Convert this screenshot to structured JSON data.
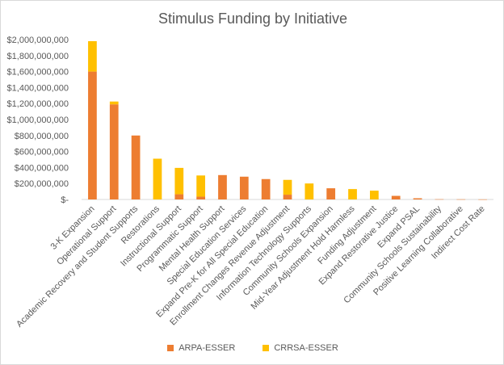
{
  "chart_data": {
    "type": "bar",
    "stacked": true,
    "title": "Stimulus Funding by Initiative",
    "xlabel": "",
    "ylabel": "",
    "ylim": [
      0,
      2000000000
    ],
    "yticks": [
      "$-",
      "$200,000,000",
      "$400,000,000",
      "$600,000,000",
      "$800,000,000",
      "$1,000,000,000",
      "$1,200,000,000",
      "$1,400,000,000",
      "$1,600,000,000",
      "$1,800,000,000",
      "$2,000,000,000"
    ],
    "grid": false,
    "legend_position": "bottom",
    "categories": [
      "3-K Expansion",
      "Operational Support",
      "Academic Recovery and Student Supports",
      "Restorations",
      "Instructional Support",
      "Programmatic Support",
      "Mental Health Support",
      "Special Education Services",
      "Expand Pre-K for All Special Education",
      "Enrollment Changes Revenue Adjustment",
      "Information Technology Supports",
      "Community Schools Expansion",
      "Mid-Year Adjustment Hold Harmless",
      "Funding Adjustment",
      "Expand Restorative Justice",
      "Expand PSAL",
      "Community Schools Sustainability",
      "Positive Learning Collaborative",
      "Indirect Cost Rate"
    ],
    "series": [
      {
        "name": "ARPA-ESSER",
        "color": "#ED7D31",
        "values": [
          1600000000,
          1190000000,
          800000000,
          0,
          65000000,
          35000000,
          305000000,
          285000000,
          255000000,
          60000000,
          0,
          140000000,
          0,
          0,
          45000000,
          15000000,
          3000000,
          2000000,
          1000000
        ]
      },
      {
        "name": "CRRSA-ESSER",
        "color": "#FFC000",
        "values": [
          380000000,
          35000000,
          0,
          510000000,
          330000000,
          265000000,
          0,
          0,
          0,
          185000000,
          200000000,
          0,
          130000000,
          110000000,
          0,
          0,
          0,
          0,
          0
        ]
      }
    ]
  }
}
